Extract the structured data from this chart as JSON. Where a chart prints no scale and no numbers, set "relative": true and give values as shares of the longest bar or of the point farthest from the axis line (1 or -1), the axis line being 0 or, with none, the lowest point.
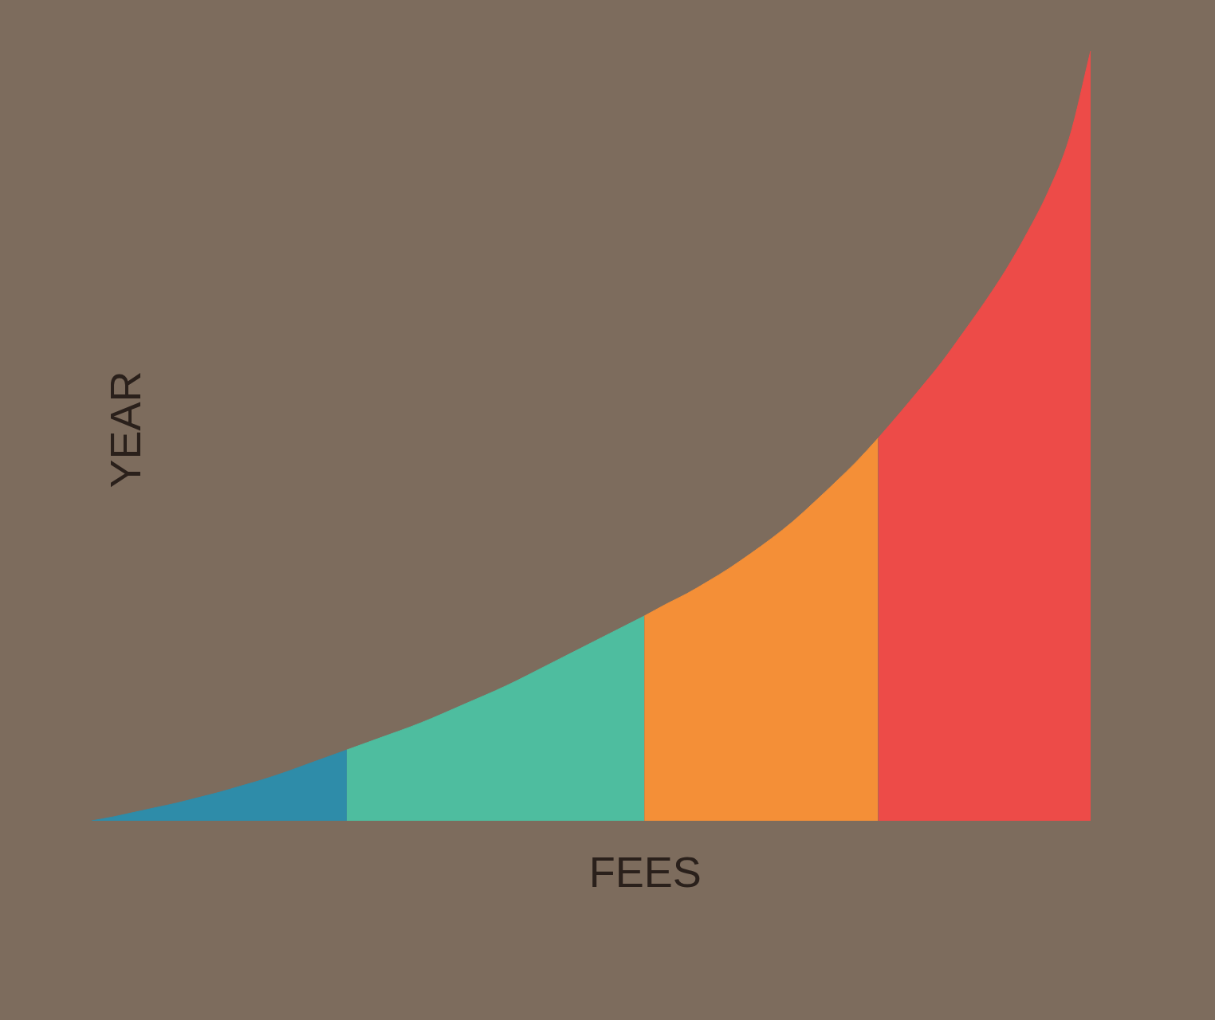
{
  "chart_data": {
    "type": "area",
    "relative": true,
    "xlabel": "FEES",
    "ylabel": "YEAR",
    "tick_labels": false,
    "categories": [
      null,
      null,
      null,
      null,
      null,
      null,
      null,
      null,
      null,
      null,
      null,
      null,
      null,
      null,
      null,
      null,
      null,
      null,
      null,
      null,
      null,
      null,
      null,
      null,
      null,
      null,
      null,
      null,
      null,
      null,
      null,
      null,
      null,
      null,
      null,
      null,
      null,
      null,
      null,
      null,
      null,
      null,
      null,
      null,
      null,
      null,
      null,
      null
    ],
    "series": [
      {
        "color": "#2e8ca9",
        "values": [
          0,
          0.005,
          0.011,
          0.017,
          0.023,
          0.03,
          0.037,
          0.045,
          0.053,
          0.062,
          0.072,
          0.082,
          0.092,
          null,
          null,
          null,
          null,
          null,
          null,
          null,
          null,
          null,
          null,
          null,
          null,
          null,
          null,
          null,
          null,
          null,
          null,
          null,
          null,
          null,
          null,
          null,
          null,
          null,
          null,
          null,
          null,
          null,
          null,
          null,
          null,
          null,
          null,
          null
        ]
      },
      {
        "color": "#4ebd9f",
        "values": [
          null,
          null,
          null,
          null,
          null,
          null,
          null,
          null,
          null,
          null,
          null,
          null,
          0.092,
          0.102,
          0.112,
          0.122,
          0.133,
          0.145,
          0.157,
          0.169,
          0.182,
          0.196,
          0.21,
          0.224,
          0.238,
          0.252,
          0.266,
          null,
          null,
          null,
          null,
          null,
          null,
          null,
          null,
          null,
          null,
          null,
          null,
          null,
          null,
          null,
          null,
          null,
          null,
          null,
          null,
          null
        ]
      },
      {
        "color": "#f48f37",
        "values": [
          null,
          null,
          null,
          null,
          null,
          null,
          null,
          null,
          null,
          null,
          null,
          null,
          null,
          null,
          null,
          null,
          null,
          null,
          null,
          null,
          null,
          null,
          null,
          null,
          null,
          null,
          0.266,
          0.281,
          0.295,
          0.311,
          0.328,
          0.347,
          0.367,
          0.389,
          0.414,
          0.44,
          0.467,
          0.497,
          null,
          null,
          null,
          null,
          null,
          null,
          null,
          null,
          null,
          null
        ]
      },
      {
        "color": "#ed4b48",
        "values": [
          null,
          null,
          null,
          null,
          null,
          null,
          null,
          null,
          null,
          null,
          null,
          null,
          null,
          null,
          null,
          null,
          null,
          null,
          null,
          null,
          null,
          null,
          null,
          null,
          null,
          null,
          null,
          null,
          null,
          null,
          null,
          null,
          null,
          null,
          null,
          null,
          null,
          0.497,
          0.529,
          0.562,
          0.596,
          0.634,
          0.673,
          0.715,
          0.763,
          0.817,
          0.887,
          1
        ]
      }
    ]
  }
}
